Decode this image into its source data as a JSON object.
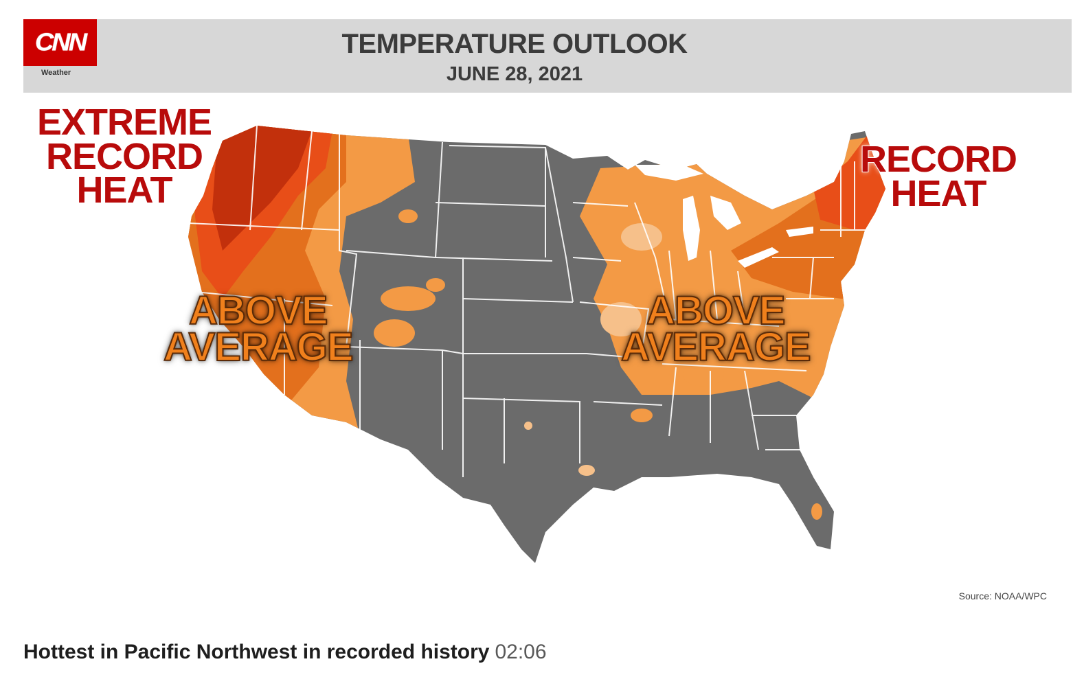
{
  "logo": {
    "text": "CNN",
    "subtext": "Weather"
  },
  "header": {
    "title": "TEMPERATURE OUTLOOK",
    "date": "JUNE 28, 2021"
  },
  "map": {
    "region": "Contiguous United States",
    "labels": {
      "extreme": [
        "EXTREME",
        "RECORD",
        "HEAT"
      ],
      "record_heat": [
        "RECORD",
        "HEAT"
      ],
      "above_average_west": [
        "ABOVE",
        "AVERAGE"
      ],
      "above_average_east": [
        "ABOVE",
        "AVERAGE"
      ]
    },
    "colors": {
      "background": "#ffffff",
      "land_neutral": "#6b6b6b",
      "above_average": "#f39a45",
      "above_average_light": "#f6c08a",
      "much_above": "#e3701d",
      "record": "#e84e18",
      "extreme": "#c2300c",
      "state_lines": "#ffffff",
      "label_red": "#b80b0b",
      "label_orange": "#f0801c",
      "header_band": "#d7d7d7",
      "logo_red": "#cc0000"
    },
    "source": "Source: NOAA/WPC"
  },
  "caption": {
    "title": "Hottest in Pacific Northwest in recorded history",
    "duration": "02:06"
  }
}
